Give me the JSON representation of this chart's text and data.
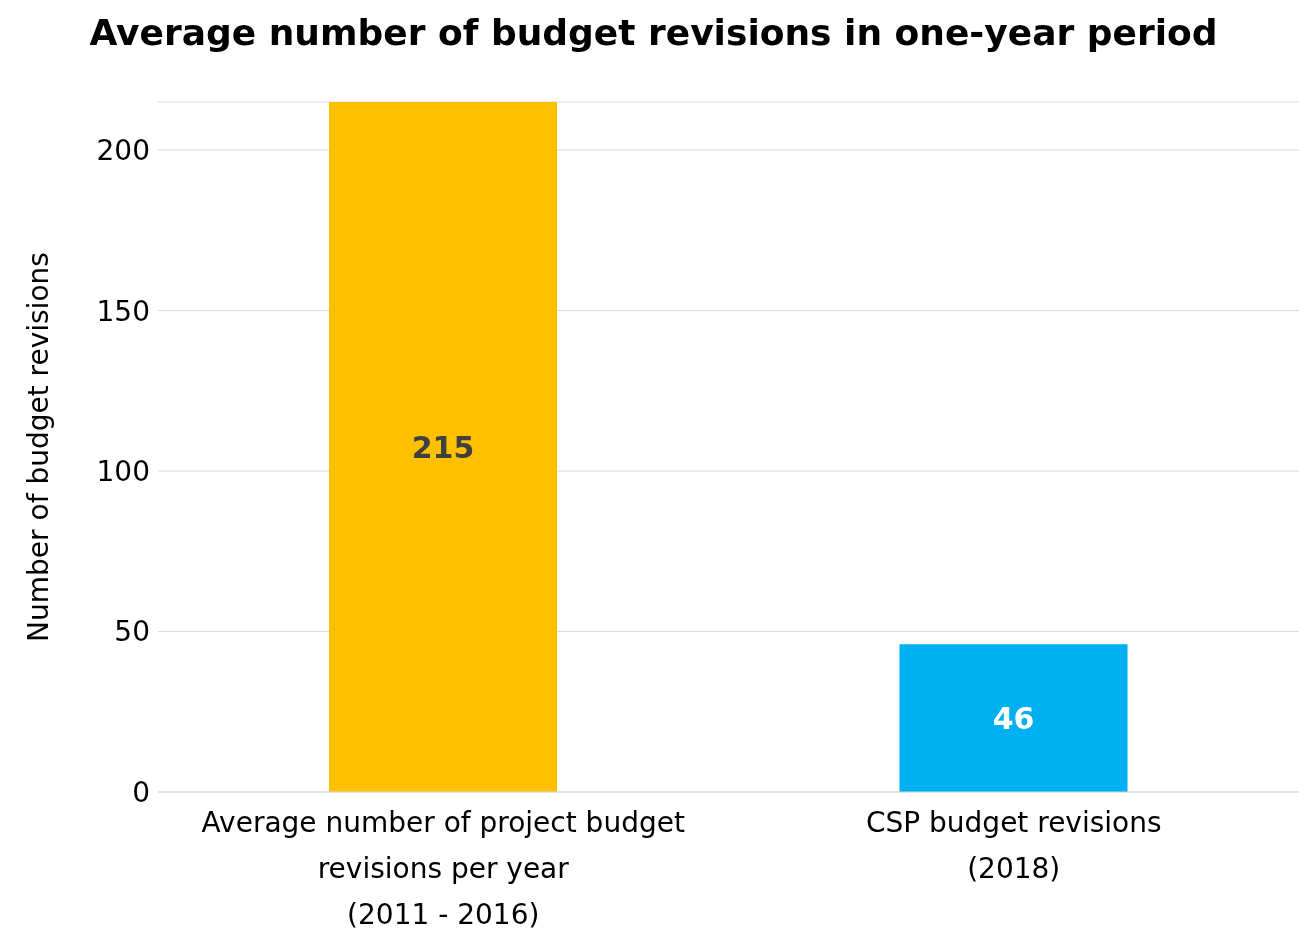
{
  "chart_data": {
    "type": "bar",
    "title": "Average number of budget revisions in one-year period",
    "ylabel": "Number of budget revisions",
    "categories": [
      "Average number of project budget\nrevisions per year\n(2011 - 2016)",
      "CSP budget revisions\n(2018)"
    ],
    "values": [
      215,
      46
    ],
    "colors": [
      "#ffc000",
      "#00b0f0"
    ],
    "ylim": [
      0,
      215
    ],
    "yticks": [
      0,
      50,
      100,
      150,
      200
    ],
    "grid": "y",
    "data_labels": true
  }
}
